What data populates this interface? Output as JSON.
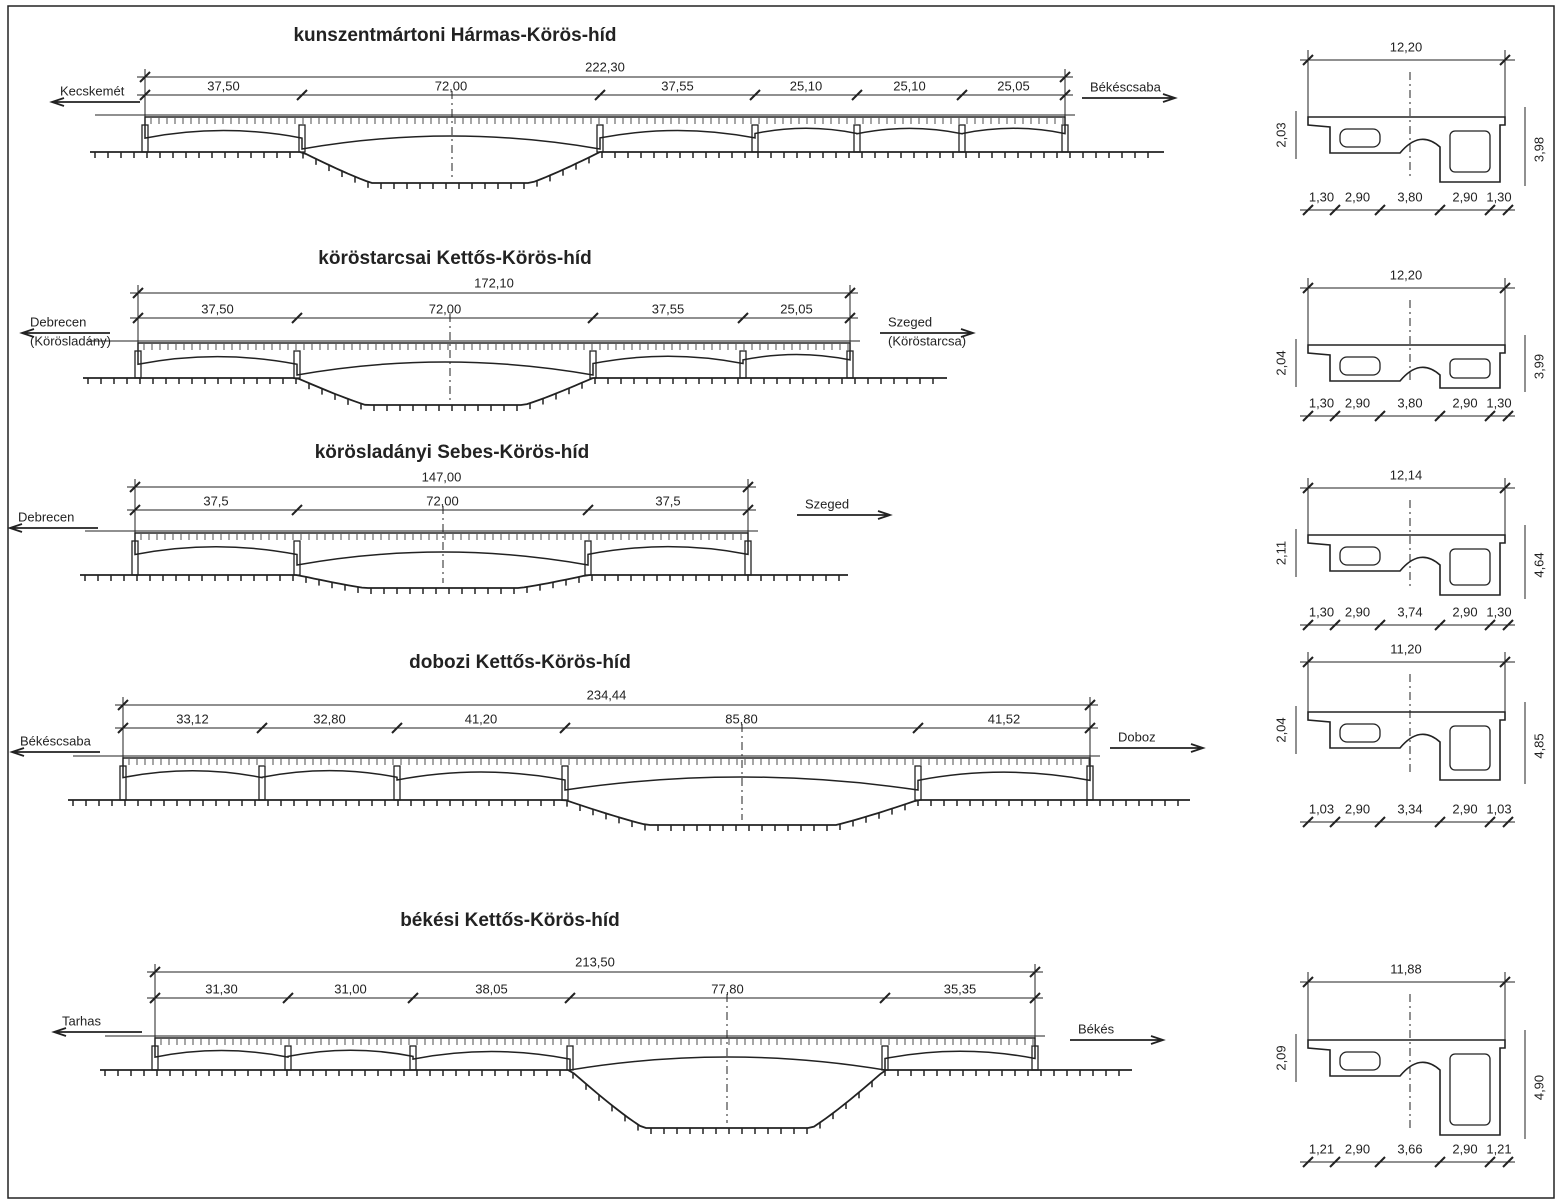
{
  "bridges": [
    {
      "title": "kunszentmártoni Hármas-Körös-híd",
      "total": "222,30",
      "spans": [
        "37,50",
        "72,00",
        "37,55",
        "25,10",
        "25,10",
        "25,05"
      ],
      "left": [
        "Kecskemét"
      ],
      "right": [
        "Békéscsaba"
      ],
      "section": {
        "width": "12,20",
        "height_left": "2,03",
        "height_right": "3,98",
        "bottom": [
          "1,30",
          "2,90",
          "3,80",
          "2,90",
          "1,30"
        ]
      }
    },
    {
      "title": "köröstarcsai Kettős-Körös-híd",
      "total": "172,10",
      "spans": [
        "37,50",
        "72,00",
        "37,55",
        "25,05"
      ],
      "left": [
        "Debrecen",
        "(Körösladány)"
      ],
      "right": [
        "Szeged",
        "(Köröstarcsa)"
      ],
      "section": {
        "width": "12,20",
        "height_left": "2,04",
        "height_right": "3,99",
        "bottom": [
          "1,30",
          "2,90",
          "3,80",
          "2,90",
          "1,30"
        ]
      }
    },
    {
      "title": "körösladányi Sebes-Körös-híd",
      "total": "147,00",
      "spans": [
        "37,5",
        "72,00",
        "37,5"
      ],
      "left": [
        "Debrecen"
      ],
      "right": [
        "Szeged"
      ],
      "section": {
        "width": "12,14",
        "height_left": "2,11",
        "height_right": "4,64",
        "bottom": [
          "1,30",
          "2,90",
          "3,74",
          "2,90",
          "1,30"
        ]
      }
    },
    {
      "title": "dobozi Kettős-Körös-híd",
      "total": "234,44",
      "spans": [
        "33,12",
        "32,80",
        "41,20",
        "85,80",
        "41,52"
      ],
      "left": [
        "Békéscsaba"
      ],
      "right": [
        "Doboz"
      ],
      "section": {
        "width": "11,20",
        "height_left": "2,04",
        "height_right": "4,85",
        "bottom": [
          "1,03",
          "2,90",
          "3,34",
          "2,90",
          "1,03"
        ]
      }
    },
    {
      "title": "békési Kettős-Körös-híd",
      "total": "213,50",
      "spans": [
        "31,30",
        "31,00",
        "38,05",
        "77,80",
        "35,35"
      ],
      "left": [
        "Tarhas"
      ],
      "right": [
        "Békés"
      ],
      "section": {
        "width": "11,88",
        "height_left": "2,09",
        "height_right": "4,90",
        "bottom": [
          "1,21",
          "2,90",
          "3,66",
          "2,90",
          "1,21"
        ]
      }
    }
  ]
}
